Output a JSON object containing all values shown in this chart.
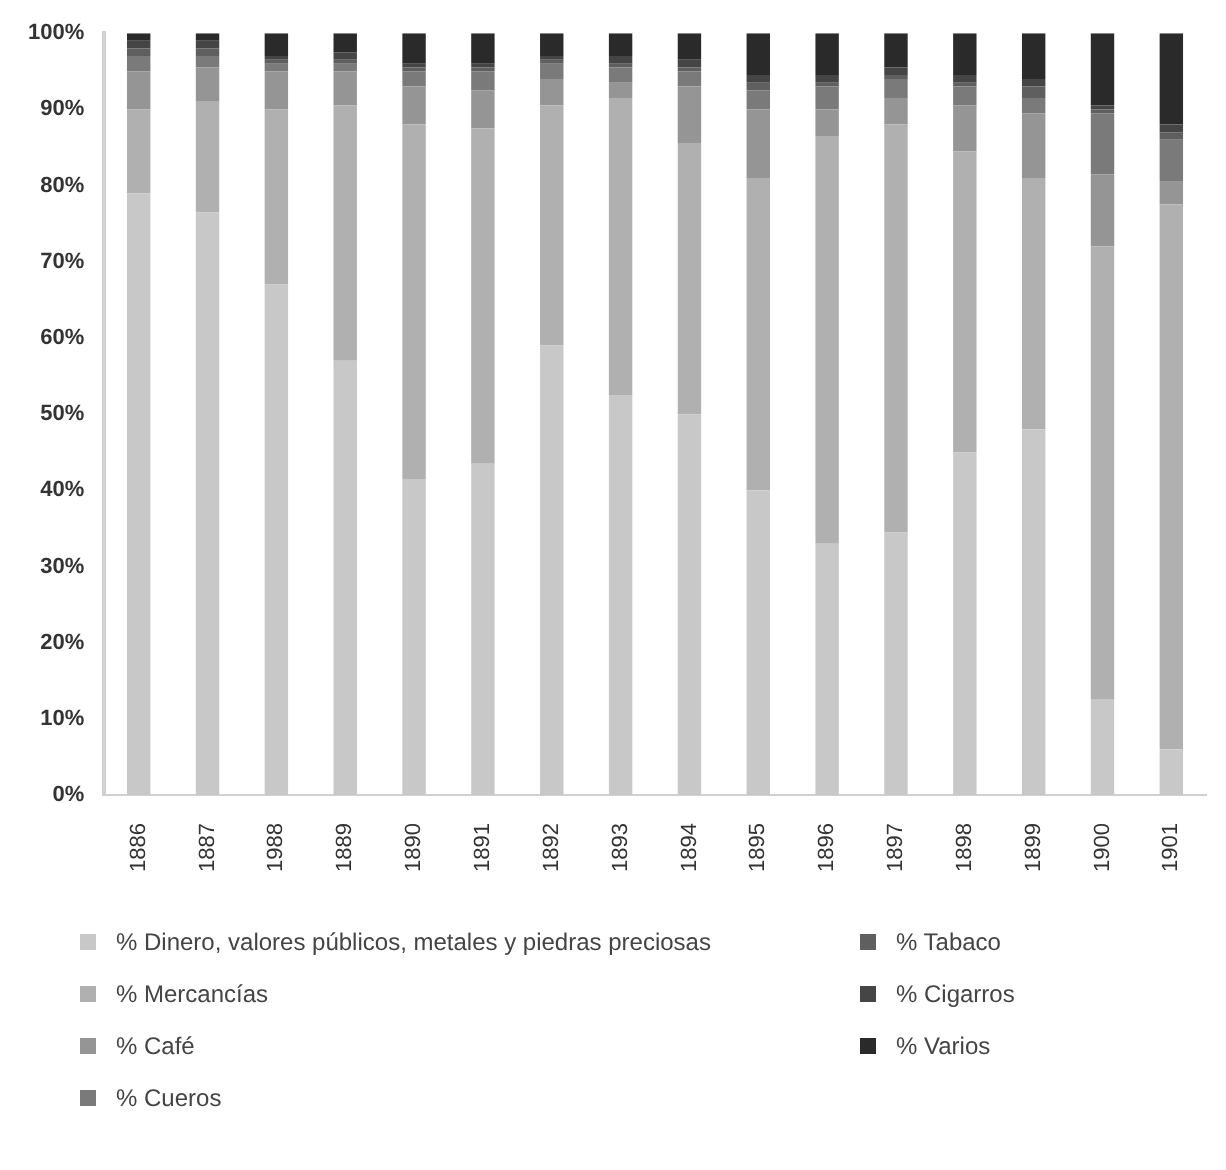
{
  "chart_data": {
    "type": "bar",
    "stacked": true,
    "legend": "bottom",
    "grid": false,
    "categories": [
      "1886",
      "1887",
      "1988",
      "1889",
      "1890",
      "1891",
      "1892",
      "1893",
      "1894",
      "1895",
      "1896",
      "1897",
      "1898",
      "1899",
      "1900",
      "1901"
    ],
    "ylim": [
      0,
      100
    ],
    "yticks": [
      {
        "value": 0,
        "label": "0%"
      },
      {
        "value": 10,
        "label": "10%"
      },
      {
        "value": 20,
        "label": "20%"
      },
      {
        "value": 30,
        "label": "30%"
      },
      {
        "value": 40,
        "label": "40%"
      },
      {
        "value": 50,
        "label": "50%"
      },
      {
        "value": 60,
        "label": "60%"
      },
      {
        "value": 70,
        "label": "70%"
      },
      {
        "value": 80,
        "label": "80%"
      },
      {
        "value": 90,
        "label": "90%"
      },
      {
        "value": 100,
        "label": "100%"
      }
    ],
    "series": [
      {
        "name": "% Dinero, valores públicos, metales y piedras preciosas",
        "color": "#c8c8c8",
        "values": [
          79,
          76.5,
          67,
          57,
          41.5,
          43.5,
          59,
          52.5,
          50,
          40,
          33,
          34.5,
          45,
          48,
          12.5,
          6
        ]
      },
      {
        "name": "% Mercancías",
        "color": "#b0b0b0",
        "values": [
          11,
          14.5,
          23,
          33.5,
          46.5,
          44,
          31.5,
          39,
          35.5,
          41,
          53.5,
          53.5,
          39.5,
          33,
          59.5,
          71.5
        ]
      },
      {
        "name": "% Café",
        "color": "#959595",
        "values": [
          5,
          4.5,
          5,
          4.5,
          5,
          5,
          3.5,
          2,
          7.5,
          9,
          3.5,
          3.5,
          6,
          8.5,
          9.5,
          3
        ]
      },
      {
        "name": "% Cueros",
        "color": "#7a7a7a",
        "values": [
          2,
          1.5,
          1,
          1,
          2,
          2.5,
          2,
          2,
          2,
          2.5,
          3,
          2.5,
          2.5,
          2,
          8,
          5.5
        ]
      },
      {
        "name": "% Tabaco",
        "color": "#5f5f5f",
        "values": [
          1,
          1,
          0.5,
          0.5,
          0.5,
          0.5,
          0.5,
          0.5,
          0.5,
          1,
          0.5,
          0.5,
          0.5,
          1.5,
          0.5,
          1
        ]
      },
      {
        "name": "% Cigarros",
        "color": "#454545",
        "values": [
          1,
          1,
          0.5,
          1,
          0.5,
          0.5,
          0.5,
          1,
          1,
          1,
          1,
          1,
          1,
          1,
          0.5,
          1
        ]
      },
      {
        "name": "% Varios",
        "color": "#2a2a2a",
        "values": [
          1,
          1,
          3,
          2.5,
          4,
          4,
          3,
          3,
          3.5,
          5.5,
          5.5,
          4.5,
          5.5,
          6,
          9.5,
          12
        ]
      }
    ]
  }
}
